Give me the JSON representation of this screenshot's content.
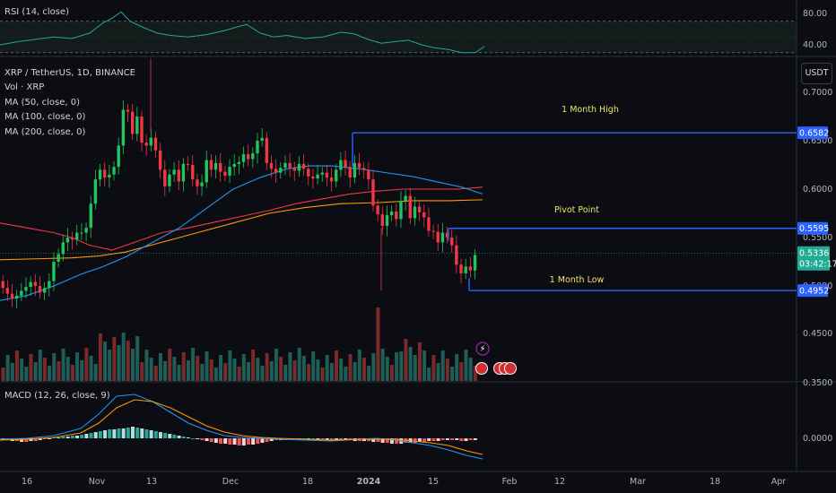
{
  "symbol_title": "XRP / TetherUS, 1D, BINANCE",
  "indicators": {
    "rsi": "RSI (14, close)",
    "vol": "Vol · XRP",
    "ma50": "MA (50, close, 0)",
    "ma100": "MA (100, close, 0)",
    "ma200": "MA (200, close, 0)",
    "macd": "MACD (12, 26, close, 9)"
  },
  "currency_button": "USDT",
  "annotations": {
    "high": "1 Month High",
    "pivot": "Pivot Point",
    "low": "1 Month Low"
  },
  "price_labels": {
    "high": "0.6582",
    "pivot": "0.5595",
    "current": "0.5336",
    "countdown": "03:42:17",
    "low": "0.4952"
  },
  "rsi_axis": [
    "80.00",
    "40.00"
  ],
  "price_axis": [
    "0.7000",
    "0.6500",
    "0.6000",
    "0.5500",
    "0.5000",
    "0.4500",
    "0.3500"
  ],
  "macd_axis": [
    "0.0000"
  ],
  "x_axis": [
    "16",
    "Nov",
    "13",
    "Dec",
    "18",
    "2024",
    "15",
    "Feb",
    "12",
    "Mar",
    "18",
    "Apr"
  ],
  "colors": {
    "up": "#26a69a",
    "down": "#ef5350",
    "candle_up": "#21c45d",
    "candle_down": "#f23645",
    "ma50": "#2196f3",
    "ma100": "#f23645",
    "ma200": "#ff9800",
    "level_line": "#2962ff",
    "current_label": "#22ab94",
    "annotation": "#f2e36b"
  },
  "chart_data": {
    "type": "candlestick",
    "interval": "1D",
    "pair": "XRP/USDT",
    "price_range": [
      0.47,
      0.74
    ],
    "levels": {
      "one_month_high": 0.6582,
      "pivot_point": 0.5595,
      "one_month_low": 0.4952,
      "last_close": 0.5336
    },
    "rsi_range": [
      20,
      100
    ],
    "macd_zero": 0.0
  }
}
